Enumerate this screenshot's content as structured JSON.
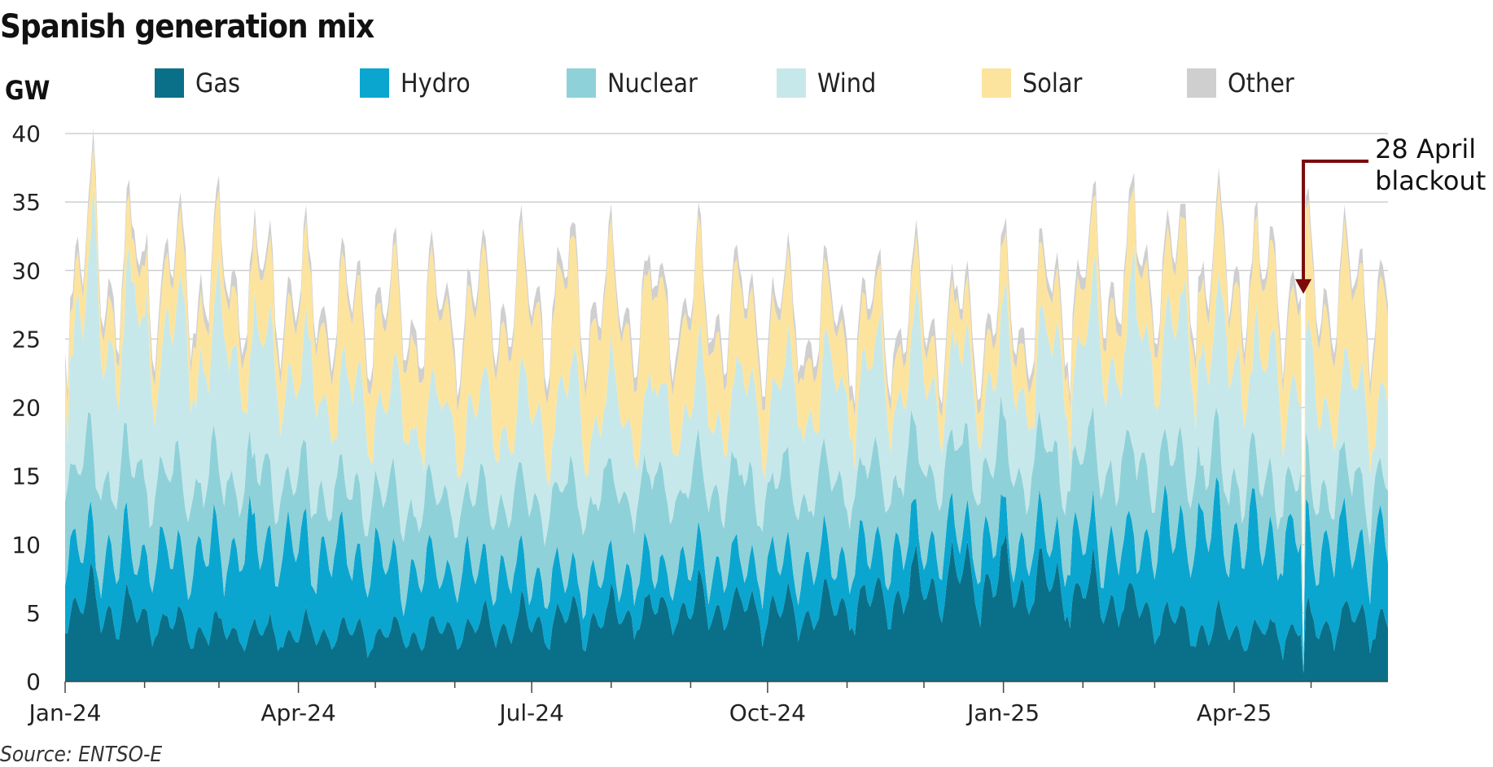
{
  "chart_data": {
    "type": "area",
    "stacked": true,
    "title": "Spanish generation mix",
    "ylabel": "GW",
    "xlabel": "",
    "source": "Source: ENTSO-E",
    "ylim": [
      0,
      40
    ],
    "y_ticks": [
      0,
      5,
      10,
      15,
      20,
      25,
      30,
      35,
      40
    ],
    "x_tick_labels": [
      "Jan-24",
      "Apr-24",
      "Jul-24",
      "Oct-24",
      "Jan-25",
      "Apr-25"
    ],
    "x_range": [
      "2024-01-01",
      "2025-05-31"
    ],
    "x_label_months": [
      "2024-01",
      "2024-04",
      "2024-07",
      "2024-10",
      "2025-01",
      "2025-04"
    ],
    "x_minor_months": [
      "2024-02",
      "2024-03",
      "2024-05",
      "2024-06",
      "2024-08",
      "2024-09",
      "2024-11",
      "2024-12",
      "2025-02",
      "2025-03",
      "2025-05"
    ],
    "grid": true,
    "legend_position": "top",
    "series_names": [
      "Gas",
      "Hydro",
      "Nuclear",
      "Wind",
      "Solar",
      "Other"
    ],
    "colors": {
      "Gas": "#0a7089",
      "Hydro": "#0aa6cf",
      "Nuclear": "#8fd1d9",
      "Wind": "#c7e8ea",
      "Solar": "#fde49e",
      "Other": "#cfcfcf"
    },
    "approx_monthly_values": {
      "months": [
        "2024-01",
        "2024-02",
        "2024-03",
        "2024-04",
        "2024-05",
        "2024-06",
        "2024-07",
        "2024-08",
        "2024-09",
        "2024-10",
        "2024-11",
        "2024-12",
        "2025-01",
        "2025-02",
        "2025-03",
        "2025-04",
        "2025-05"
      ],
      "Gas": [
        5.5,
        4.0,
        3.5,
        3.5,
        3.5,
        4.0,
        4.5,
        5.0,
        5.5,
        5.0,
        6.0,
        7.5,
        7.0,
        6.0,
        4.0,
        3.5,
        4.5
      ],
      "Hydro": [
        4.0,
        5.0,
        6.5,
        6.0,
        4.5,
        4.0,
        3.0,
        3.0,
        3.0,
        3.5,
        3.5,
        3.0,
        3.0,
        4.0,
        7.0,
        7.0,
        5.5
      ],
      "Nuclear": [
        6.0,
        5.5,
        5.0,
        4.5,
        5.0,
        5.0,
        6.0,
        6.0,
        6.0,
        5.5,
        5.5,
        5.5,
        6.0,
        6.0,
        5.0,
        4.0,
        4.5
      ],
      "Wind": [
        11.0,
        10.0,
        9.0,
        7.0,
        6.5,
        6.0,
        6.5,
        5.5,
        6.0,
        7.0,
        7.0,
        6.0,
        7.0,
        9.0,
        9.0,
        8.0,
        6.0
      ],
      "Solar": [
        3.0,
        4.0,
        4.5,
        5.5,
        6.5,
        7.5,
        7.5,
        7.0,
        6.0,
        4.5,
        3.5,
        3.0,
        3.5,
        4.5,
        4.5,
        6.0,
        7.0
      ],
      "Other": [
        1.0,
        1.0,
        1.0,
        1.0,
        1.0,
        1.0,
        1.0,
        1.0,
        1.0,
        1.0,
        1.0,
        1.0,
        1.0,
        1.0,
        1.0,
        1.0,
        1.0
      ]
    },
    "annotations": [
      {
        "date": "2025-04-28",
        "text_lines": [
          "28 April",
          "blackout"
        ],
        "color": "#7b0a0a"
      }
    ]
  }
}
